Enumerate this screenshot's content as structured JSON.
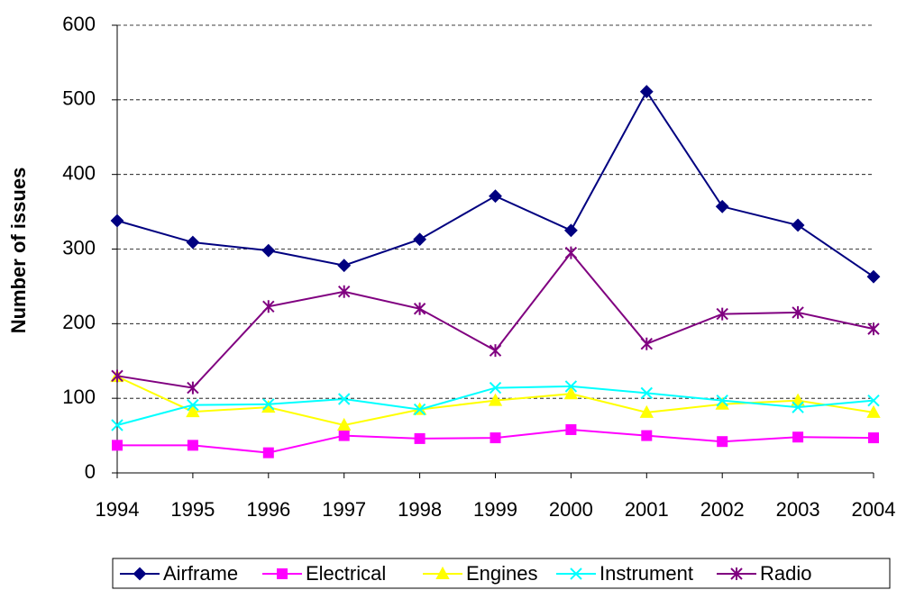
{
  "chart_data": {
    "type": "line",
    "y_label": "Number of issues",
    "categories": [
      "1994",
      "1995",
      "1996",
      "1997",
      "1998",
      "1999",
      "2000",
      "2001",
      "2002",
      "2003",
      "2004"
    ],
    "series": [
      {
        "name": "Airframe",
        "color": "#000080",
        "marker": "diamond",
        "values": [
          338,
          309,
          298,
          278,
          313,
          371,
          325,
          511,
          357,
          332,
          263
        ]
      },
      {
        "name": "Electrical",
        "color": "#ff00ff",
        "marker": "square",
        "values": [
          37,
          37,
          27,
          50,
          46,
          47,
          58,
          50,
          42,
          48,
          47
        ]
      },
      {
        "name": "Engines",
        "color": "#ffff00",
        "marker": "triangle",
        "values": [
          129,
          82,
          88,
          64,
          85,
          97,
          106,
          81,
          92,
          97,
          81
        ]
      },
      {
        "name": "Instrument",
        "color": "#00ffff",
        "marker": "x",
        "values": [
          64,
          91,
          92,
          99,
          85,
          114,
          116,
          107,
          97,
          88,
          97
        ]
      },
      {
        "name": "Radio",
        "color": "#800080",
        "marker": "star",
        "values": [
          130,
          114,
          223,
          243,
          220,
          164,
          295,
          173,
          213,
          215,
          193
        ]
      }
    ],
    "ylim": [
      0,
      600
    ],
    "yticks": [
      0,
      100,
      200,
      300,
      400,
      500,
      600
    ],
    "grid": true,
    "legend": "bottom"
  }
}
